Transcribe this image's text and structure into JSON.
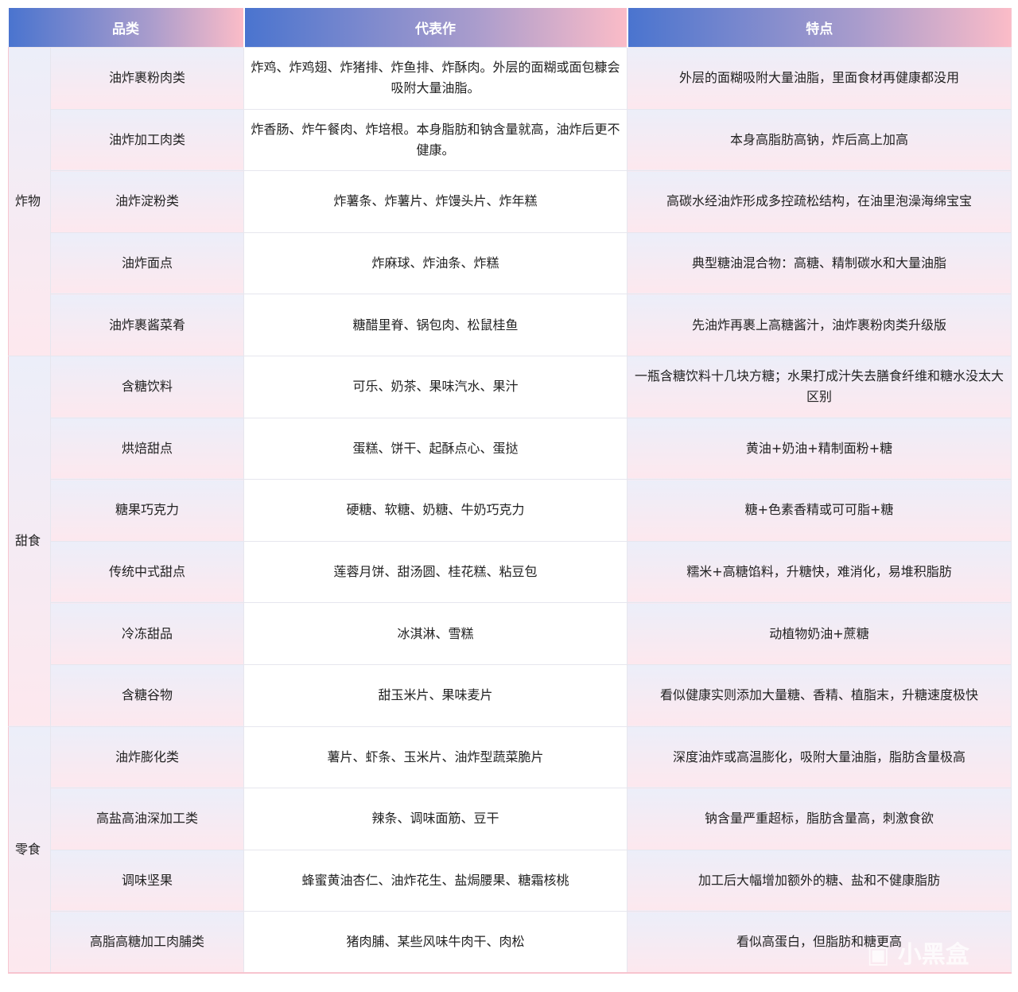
{
  "headers": [
    "品类",
    "代表作",
    "特点"
  ],
  "groups": [
    {
      "name": "炸物",
      "rows": [
        [
          "油炸裹粉肉类",
          "炸鸡、炸鸡翅、炸猪排、炸鱼排、炸酥肉。外层的面糊或面包糠会吸附大量油脂。",
          "外层的面糊吸附大量油脂，里面食材再健康都没用"
        ],
        [
          "油炸加工肉类",
          "炸香肠、炸午餐肉、炸培根。本身脂肪和钠含量就高，油炸后更不健康。",
          "本身高脂肪高钠，炸后高上加高"
        ],
        [
          "油炸淀粉类",
          "炸薯条、炸薯片、炸馒头片、炸年糕",
          "高碳水经油炸形成多控疏松结构，在油里泡澡海绵宝宝"
        ],
        [
          "油炸面点",
          "炸麻球、炸油条、炸糕",
          "典型糖油混合物：高糖、精制碳水和大量油脂"
        ],
        [
          "油炸裹酱菜肴",
          "糖醋里脊、锅包肉、松鼠桂鱼",
          "先油炸再裹上高糖酱汁，油炸裹粉肉类升级版"
        ]
      ]
    },
    {
      "name": "甜食",
      "rows": [
        [
          "含糖饮料",
          "可乐、奶茶、果味汽水、果汁",
          "一瓶含糖饮料十几块方糖；水果打成汁失去膳食纤维和糖水没太大区别"
        ],
        [
          "烘焙甜点",
          "蛋糕、饼干、起酥点心、蛋挞",
          "黄油+奶油+精制面粉+糖"
        ],
        [
          "糖果巧克力",
          "硬糖、软糖、奶糖、牛奶巧克力",
          "糖+色素香精或可可脂+糖"
        ],
        [
          "传统中式甜点",
          "莲蓉月饼、甜汤圆、桂花糕、粘豆包",
          "糯米+高糖馅料，升糖快，难消化，易堆积脂肪"
        ],
        [
          "冷冻甜品",
          "冰淇淋、雪糕",
          "动植物奶油+蔗糖"
        ],
        [
          "含糖谷物",
          "甜玉米片、果味麦片",
          "看似健康实则添加大量糖、香精、植脂末，升糖速度极快"
        ]
      ]
    },
    {
      "name": "零食",
      "rows": [
        [
          "油炸膨化类",
          "薯片、虾条、玉米片、油炸型蔬菜脆片",
          "深度油炸或高温膨化，吸附大量油脂，脂肪含量极高"
        ],
        [
          "高盐高油深加工类",
          "辣条、调味面筋、豆干",
          "钠含量严重超标，脂肪含量高，刺激食欲"
        ],
        [
          "调味坚果",
          "蜂蜜黄油杏仁、油炸花生、盐焗腰果、糖霜核桃",
          "加工后大幅增加额外的糖、盐和不健康脂肪"
        ],
        [
          "高脂高糖加工肉脯类",
          "猪肉脯、某些风味牛肉干、肉松",
          "看似高蛋白，但脂肪和糖更高"
        ]
      ]
    }
  ],
  "watermark": "小黑盒"
}
